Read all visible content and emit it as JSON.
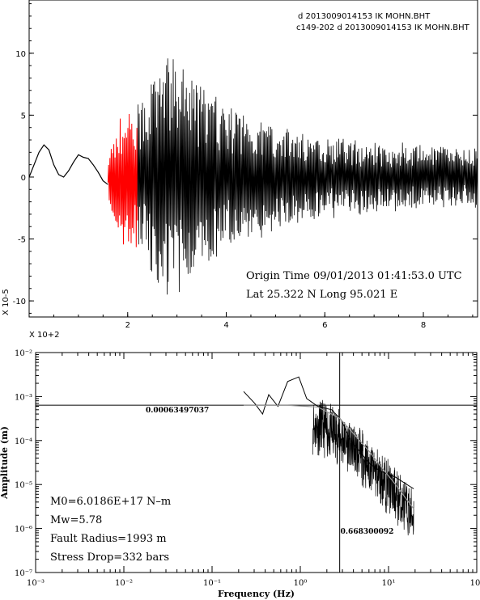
{
  "chart_data": [
    {
      "type": "line",
      "title": "",
      "legend": [
        {
          "label": "d 2013009014153 IK MOHN.BHT",
          "color": "#000000"
        },
        {
          "label": "c149-202 d 2013009014153 IK MOHN.BHT",
          "color": "#ff0000"
        }
      ],
      "x_multiplier_label": "X 10+2",
      "y_multiplier_label": "X 10-5",
      "xlim": [
        0.0,
        9.1
      ],
      "ylim": [
        -11.3,
        14.3
      ],
      "x_ticks": [
        2,
        4,
        6,
        8
      ],
      "x_tick_labels": [
        "2",
        "4",
        "6",
        "8"
      ],
      "y_ticks": [
        10,
        5,
        0,
        -5,
        -10
      ],
      "y_tick_labels": [
        "10",
        "5",
        "0",
        "-5",
        "-10"
      ],
      "annotations": [
        "Origin Time 09/01/2013 01:41:53.0 UTC",
        "Lat 25.322 N Long 95.021 E"
      ],
      "series": [
        {
          "color": "#000000",
          "segment": "pre-event",
          "x": [
            0.0,
            0.1,
            0.2,
            0.3,
            0.4,
            0.5,
            0.6,
            0.7,
            0.8,
            0.9,
            1.0,
            1.1,
            1.2,
            1.3,
            1.4,
            1.5,
            1.6
          ],
          "y": [
            0.0,
            1.0,
            2.0,
            2.6,
            2.2,
            1.0,
            0.2,
            0.0,
            0.5,
            1.2,
            1.8,
            1.6,
            1.5,
            1.0,
            0.4,
            -0.3,
            -0.6
          ]
        },
        {
          "color": "#ff0000",
          "segment": "c149-202",
          "x_range": [
            1.6,
            2.2
          ],
          "y_range": [
            -8.0,
            6.0
          ]
        },
        {
          "color": "#000000",
          "segment": "coda",
          "x_range": [
            2.2,
            9.1
          ],
          "y_range": [
            -11.0,
            14.3
          ]
        }
      ]
    },
    {
      "type": "line",
      "xlabel": "Frequency (Hz)",
      "ylabel": "Amplitude (m)",
      "x_scale": "log",
      "y_scale": "log",
      "xlim": [
        1e-05,
        100
      ],
      "ylim": [
        1e-07,
        0.01
      ],
      "x_tick_labels": [
        "10⁻³",
        "10⁻²",
        "10⁻¹",
        "10⁰",
        "10¹",
        "10²"
      ],
      "y_tick_labels": [
        "10⁻²",
        "10⁻³",
        "10⁻⁴",
        "10⁻⁵",
        "10⁻⁶",
        "10⁻⁷"
      ],
      "reference_lines": {
        "horizontal": 0.000634970376,
        "vertical": 0.668300092
      },
      "reference_labels": {
        "horizontal": "0.00063497037",
        "vertical": "0.668300092"
      },
      "annotations": [
        "M0=6.0186E+17 N–m",
        "Mw=5.78",
        "Fault Radius=1993 m",
        "Stress Drop=332 bars"
      ],
      "series": [
        {
          "name": "observed spectrum",
          "color": "#000000",
          "x": [
            0.02,
            0.03,
            0.04,
            0.05,
            0.07,
            0.1,
            0.15,
            0.2,
            0.3,
            0.5,
            0.7,
            1,
            2,
            3,
            5,
            10
          ],
          "y": [
            0.0013,
            0.0007,
            0.0004,
            0.0011,
            0.0006,
            0.0022,
            0.0028,
            0.0009,
            0.0006,
            0.0005,
            0.0003,
            0.0001,
            3e-05,
            2e-05,
            1.5e-05,
            8e-06
          ]
        },
        {
          "name": "model fit",
          "color": "#999999",
          "x": [
            0.02,
            0.1,
            0.3,
            0.67,
            1,
            2,
            3,
            5,
            10
          ],
          "y": [
            0.00063,
            0.00063,
            0.00058,
            0.00032,
            0.00017,
            5.5e-05,
            2.6e-05,
            1.05e-05,
            2.8e-06
          ]
        }
      ]
    }
  ]
}
